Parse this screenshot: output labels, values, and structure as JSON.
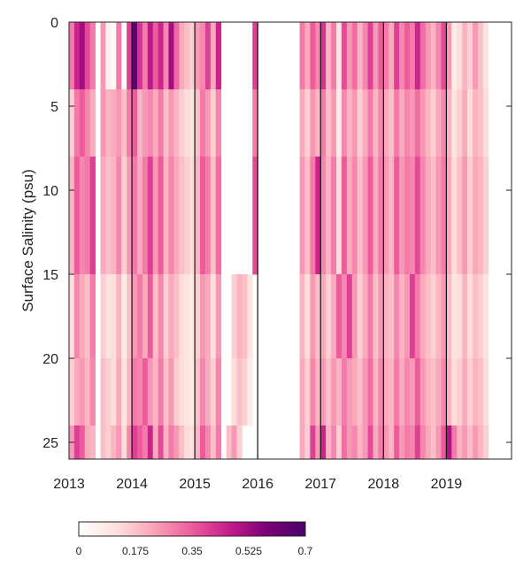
{
  "chart_data": {
    "type": "heatmap",
    "title": "",
    "xlabel": "",
    "ylabel": "Surface Salinity (psu)",
    "xlim": [
      2013,
      2020
    ],
    "ylim": [
      0,
      26
    ],
    "y_reversed": true,
    "x_ticks": [
      "2013",
      "2014",
      "2015",
      "2016",
      "2017",
      "2018",
      "2019"
    ],
    "y_ticks": [
      "0",
      "5",
      "10",
      "15",
      "20",
      "25"
    ],
    "year_divider_lines": [
      2014,
      2015,
      2016,
      2017,
      2018,
      2019
    ],
    "colorbar": {
      "ticks": [
        "0",
        "0.175",
        "0.35",
        "0.525",
        "0.7"
      ],
      "range": [
        0,
        0.7
      ],
      "colors": [
        "#ffffff",
        "#fde0dc",
        "#f9a3b8",
        "#ee5b9d",
        "#c51b8a",
        "#7a0177",
        "#49006a"
      ]
    },
    "salinity_bins": [
      [
        0,
        4
      ],
      [
        4,
        8
      ],
      [
        8,
        15
      ],
      [
        15,
        20
      ],
      [
        20,
        24
      ],
      [
        24,
        26
      ]
    ],
    "months": [
      2013.0,
      2013.083,
      2013.167,
      2013.25,
      2013.333,
      2013.417,
      2013.5,
      2013.583,
      2013.667,
      2013.75,
      2013.833,
      2013.917,
      2014.0,
      2014.083,
      2014.167,
      2014.25,
      2014.333,
      2014.417,
      2014.5,
      2014.583,
      2014.667,
      2014.75,
      2014.833,
      2014.917,
      2015.0,
      2015.083,
      2015.167,
      2015.25,
      2015.333,
      2015.417,
      2015.5,
      2015.583,
      2015.667,
      2015.75,
      2015.833,
      2015.917,
      2016.0,
      2016.083,
      2016.167,
      2016.25,
      2016.333,
      2016.417,
      2016.5,
      2016.583,
      2016.667,
      2016.75,
      2016.833,
      2016.917,
      2017.0,
      2017.083,
      2017.167,
      2017.25,
      2017.333,
      2017.417,
      2017.5,
      2017.583,
      2017.667,
      2017.75,
      2017.833,
      2017.917,
      2018.0,
      2018.083,
      2018.167,
      2018.25,
      2018.333,
      2018.417,
      2018.5,
      2018.583,
      2018.667,
      2018.75,
      2018.833,
      2018.917,
      2019.0,
      2019.083,
      2019.167,
      2019.25,
      2019.333,
      2019.417,
      2019.5,
      2019.583,
      2019.667,
      2019.75,
      2019.833,
      2019.917
    ],
    "values": [
      [
        0.3,
        0.45,
        0.52,
        0.38,
        0.3,
        0.0,
        0.25,
        0.05,
        0.03,
        0.3,
        0.02,
        0.4,
        0.65,
        0.42,
        0.3,
        0.48,
        0.35,
        0.45,
        0.28,
        0.52,
        0.33,
        0.22,
        0.18,
        0.15,
        0.25,
        0.28,
        0.4,
        0.22,
        0.45,
        0.0,
        0.0,
        0.0,
        0.0,
        0.0,
        0.0,
        0.4,
        0.0,
        0.0,
        0.0,
        0.0,
        0.0,
        0.0,
        0.0,
        0.0,
        0.3,
        0.22,
        0.35,
        0.28,
        0.42,
        0.2,
        0.3,
        0.1,
        0.38,
        0.25,
        0.32,
        0.2,
        0.28,
        0.4,
        0.25,
        0.35,
        0.3,
        0.22,
        0.4,
        0.28,
        0.35,
        0.3,
        0.45,
        0.32,
        0.25,
        0.2,
        0.28,
        0.38,
        0.25,
        0.08,
        0.12,
        0.2,
        0.15,
        0.25,
        0.18,
        0.1,
        0.0,
        0.0,
        0.0,
        0.0
      ],
      [
        0.15,
        0.3,
        0.35,
        0.28,
        0.22,
        0.0,
        0.25,
        0.2,
        0.22,
        0.25,
        0.18,
        0.3,
        0.35,
        0.2,
        0.25,
        0.28,
        0.22,
        0.3,
        0.18,
        0.25,
        0.2,
        0.15,
        0.12,
        0.1,
        0.18,
        0.3,
        0.25,
        0.15,
        0.28,
        0.0,
        0.0,
        0.0,
        0.0,
        0.0,
        0.0,
        0.3,
        0.0,
        0.0,
        0.0,
        0.0,
        0.0,
        0.0,
        0.0,
        0.0,
        0.22,
        0.15,
        0.25,
        0.2,
        0.3,
        0.18,
        0.25,
        0.08,
        0.28,
        0.2,
        0.25,
        0.15,
        0.22,
        0.3,
        0.2,
        0.28,
        0.22,
        0.18,
        0.3,
        0.22,
        0.28,
        0.25,
        0.32,
        0.25,
        0.2,
        0.15,
        0.22,
        0.28,
        0.2,
        0.1,
        0.15,
        0.22,
        0.12,
        0.2,
        0.18,
        0.12,
        0.0,
        0.0,
        0.0,
        0.0
      ],
      [
        0.2,
        0.35,
        0.28,
        0.3,
        0.4,
        0.0,
        0.22,
        0.18,
        0.2,
        0.28,
        0.15,
        0.25,
        0.3,
        0.22,
        0.3,
        0.4,
        0.25,
        0.35,
        0.2,
        0.28,
        0.22,
        0.18,
        0.15,
        0.12,
        0.2,
        0.35,
        0.3,
        0.18,
        0.32,
        0.0,
        0.0,
        0.0,
        0.0,
        0.0,
        0.0,
        0.38,
        0.0,
        0.0,
        0.0,
        0.0,
        0.0,
        0.0,
        0.0,
        0.0,
        0.25,
        0.18,
        0.3,
        0.45,
        0.28,
        0.2,
        0.3,
        0.12,
        0.35,
        0.22,
        0.28,
        0.18,
        0.25,
        0.35,
        0.22,
        0.3,
        0.25,
        0.2,
        0.35,
        0.25,
        0.3,
        0.28,
        0.38,
        0.28,
        0.22,
        0.18,
        0.25,
        0.3,
        0.22,
        0.12,
        0.18,
        0.25,
        0.15,
        0.22,
        0.2,
        0.15,
        0.0,
        0.0,
        0.0,
        0.0
      ],
      [
        0.12,
        0.28,
        0.22,
        0.18,
        0.3,
        0.0,
        0.15,
        0.1,
        0.12,
        0.2,
        0.08,
        0.18,
        0.25,
        0.3,
        0.22,
        0.35,
        0.18,
        0.28,
        0.15,
        0.22,
        0.18,
        0.12,
        0.1,
        0.08,
        0.15,
        0.25,
        0.22,
        0.12,
        0.25,
        0.0,
        0.0,
        0.15,
        0.2,
        0.18,
        0.1,
        0.0,
        0.0,
        0.0,
        0.0,
        0.0,
        0.0,
        0.0,
        0.0,
        0.0,
        0.2,
        0.12,
        0.25,
        0.18,
        0.22,
        0.15,
        0.22,
        0.35,
        0.28,
        0.4,
        0.25,
        0.15,
        0.22,
        0.3,
        0.18,
        0.25,
        0.2,
        0.18,
        0.28,
        0.2,
        0.25,
        0.4,
        0.3,
        0.22,
        0.18,
        0.15,
        0.2,
        0.25,
        0.18,
        0.1,
        0.12,
        0.2,
        0.12,
        0.18,
        0.15,
        0.1,
        0.0,
        0.0,
        0.0,
        0.0
      ],
      [
        0.15,
        0.22,
        0.25,
        0.2,
        0.28,
        0.0,
        0.18,
        0.15,
        0.12,
        0.22,
        0.1,
        0.2,
        0.3,
        0.28,
        0.35,
        0.25,
        0.2,
        0.3,
        0.18,
        0.25,
        0.15,
        0.12,
        0.1,
        0.08,
        0.18,
        0.28,
        0.22,
        0.15,
        0.28,
        0.0,
        0.0,
        0.12,
        0.18,
        0.15,
        0.08,
        0.0,
        0.0,
        0.0,
        0.0,
        0.0,
        0.0,
        0.0,
        0.0,
        0.0,
        0.22,
        0.15,
        0.28,
        0.2,
        0.25,
        0.18,
        0.25,
        0.2,
        0.3,
        0.25,
        0.22,
        0.18,
        0.25,
        0.32,
        0.2,
        0.28,
        0.22,
        0.2,
        0.3,
        0.22,
        0.28,
        0.25,
        0.35,
        0.25,
        0.2,
        0.18,
        0.22,
        0.28,
        0.2,
        0.12,
        0.15,
        0.22,
        0.15,
        0.2,
        0.18,
        0.12,
        0.0,
        0.0,
        0.0,
        0.0
      ],
      [
        0.25,
        0.4,
        0.35,
        0.22,
        0.2,
        0.0,
        0.18,
        0.15,
        0.2,
        0.25,
        0.12,
        0.28,
        0.4,
        0.35,
        0.3,
        0.45,
        0.22,
        0.38,
        0.2,
        0.3,
        0.25,
        0.18,
        0.12,
        0.1,
        0.2,
        0.35,
        0.28,
        0.18,
        0.3,
        0.0,
        0.18,
        0.25,
        0.15,
        0.0,
        0.0,
        0.0,
        0.0,
        0.0,
        0.0,
        0.0,
        0.0,
        0.0,
        0.0,
        0.0,
        0.22,
        0.15,
        0.4,
        0.25,
        0.45,
        0.2,
        0.28,
        0.15,
        0.32,
        0.25,
        0.28,
        0.2,
        0.25,
        0.38,
        0.22,
        0.3,
        0.25,
        0.2,
        0.35,
        0.25,
        0.3,
        0.28,
        0.4,
        0.28,
        0.22,
        0.18,
        0.25,
        0.35,
        0.5,
        0.3,
        0.2,
        0.25,
        0.18,
        0.25,
        0.2,
        0.15,
        0.0,
        0.0,
        0.0,
        0.0
      ]
    ]
  }
}
